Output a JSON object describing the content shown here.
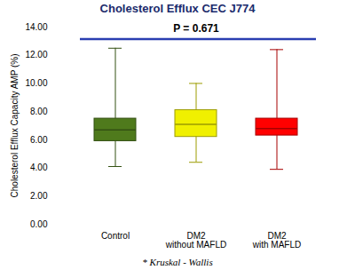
{
  "chart_data": {
    "type": "box",
    "title": "Cholesterol Efflux CEC J774",
    "y_label": "Cholesterol Efflux Capacity AMP (%)",
    "categories": [
      "Control",
      "DM2 without MAFLD",
      "DM2 with MAFLD"
    ],
    "min": [
      4.1,
      4.4,
      3.9
    ],
    "q1": [
      5.9,
      6.2,
      6.3
    ],
    "median": [
      6.7,
      7.1,
      6.8
    ],
    "q3": [
      7.5,
      8.1,
      7.5
    ],
    "max": [
      12.5,
      10.0,
      12.4
    ],
    "colors": [
      "#4f7a1c",
      "#f0f000",
      "#ff0000"
    ],
    "ylim": [
      0,
      14
    ],
    "yticks": [
      {
        "value": 0,
        "label": "0.00"
      },
      {
        "value": 2,
        "label": "2.00"
      },
      {
        "value": 4,
        "label": "4.00"
      },
      {
        "value": 6,
        "label": "6.00"
      },
      {
        "value": 8,
        "label": "8.00"
      },
      {
        "value": 10,
        "label": "10.00"
      },
      {
        "value": 12,
        "label": "12.00"
      },
      {
        "value": 14,
        "label": "14.00"
      }
    ],
    "annotation": {
      "text": "P = 0.671",
      "y": 13.15
    },
    "footnote": "* Kruskal - Wallis"
  }
}
